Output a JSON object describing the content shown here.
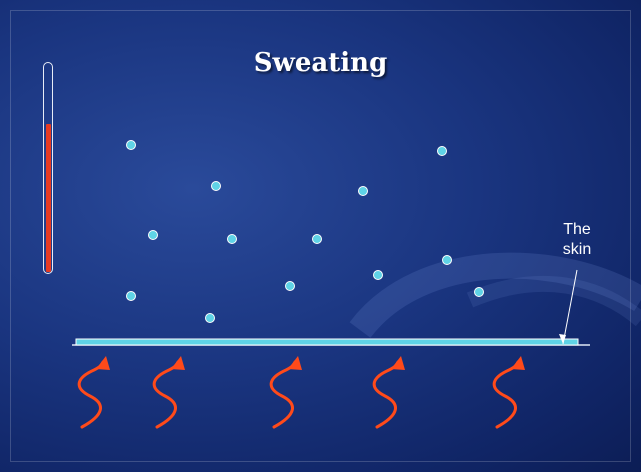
{
  "slide": {
    "title": "Sweating",
    "skin_label_line1": "The",
    "skin_label_line2": "skin"
  },
  "colors": {
    "background": "#1a3580",
    "droplet_fill": "#5fd3e6",
    "droplet_stroke": "#ffffff",
    "skin_fill": "#5fd3e6",
    "heat_arrow": "#ff4a1a",
    "thermometer_fill": "#e83a22"
  },
  "thermometer": {
    "level": 0.71
  },
  "diagram": {
    "droplet_count": 16,
    "heat_arrow_count": 5
  }
}
